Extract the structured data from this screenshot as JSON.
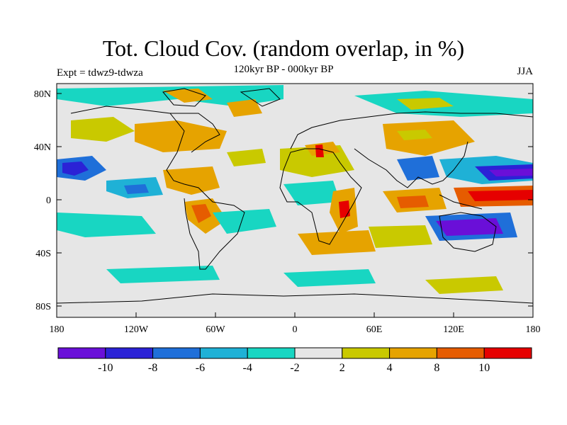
{
  "title": "Tot. Cloud Cov. (random overlap, in %)",
  "subtitle": "120kyr BP - 000kyr BP",
  "expt_label": "Expt = tdwz9-tdwza",
  "season": "JJA",
  "lat_labels": [
    "80N",
    "40N",
    "0",
    "40S",
    "80S"
  ],
  "lon_labels": [
    "180",
    "120W",
    "60W",
    "0",
    "60E",
    "120E",
    "180"
  ],
  "colorbar": {
    "colors": [
      "#6a0fd8",
      "#2b22d6",
      "#1f6fd9",
      "#1fb1d6",
      "#18d6c2",
      "#e6e6e6",
      "#c9c900",
      "#e6a300",
      "#e65c00",
      "#e60000"
    ],
    "labels": [
      "-10",
      "-8",
      "-6",
      "-4",
      "-2",
      "2",
      "4",
      "8",
      "10"
    ]
  },
  "anomaly_colors": {
    "neg_strong": "#2b22d6",
    "neg_mid": "#1f6fd9",
    "neg_light": "#1fb1d6",
    "neg_weak": "#18d6c2",
    "neutral": "#e6e6e6",
    "pos_weak": "#c9c900",
    "pos_mid": "#e6a300",
    "pos_strong": "#e65c00",
    "pos_max": "#e60000"
  }
}
